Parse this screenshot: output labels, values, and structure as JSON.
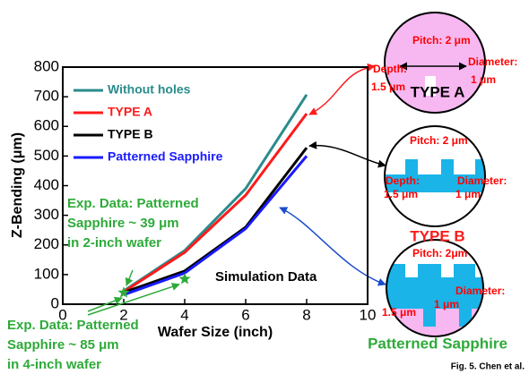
{
  "chart_data": {
    "type": "line",
    "y_label": "Z-Bending (μm)",
    "x_label": "Wafer Size (inch)",
    "x": [
      2,
      4,
      6,
      8
    ],
    "series": [
      {
        "name": "Without holes",
        "color": "#2a8c8c",
        "values": [
          45,
          181,
          390,
          707
        ]
      },
      {
        "name": "TYPE  A",
        "color": "#ff1a1a",
        "values": [
          42,
          175,
          368,
          643
        ]
      },
      {
        "name": "TYPE B",
        "color": "#000000",
        "values": [
          40,
          112,
          260,
          528
        ]
      },
      {
        "name": "Patterned Sapphire",
        "color": "#1a1aff",
        "values": [
          32,
          105,
          255,
          500
        ]
      }
    ],
    "experimental": {
      "color": "#2eaa3a",
      "x": [
        2,
        4
      ],
      "values": [
        39,
        85
      ]
    },
    "xlim": [
      0,
      10
    ],
    "xticks": [
      0,
      2,
      4,
      6,
      8,
      10
    ],
    "ylim": [
      0,
      800
    ],
    "yticks": [
      0,
      100,
      200,
      300,
      400,
      500,
      600,
      700,
      800
    ],
    "annotations": {
      "exp_2inch": [
        "Exp. Data: Patterned",
        "Sapphire ~ 39 μm",
        "in 2-inch wafer"
      ],
      "exp_4inch": [
        "Exp. Data: Patterned",
        "Sapphire ~ 85 μm",
        "in 4-inch wafer"
      ],
      "simulation": "Simulation Data"
    }
  },
  "diagrams": [
    {
      "title": "TYPE A",
      "labels": [
        "Pitch: 2 μm",
        "Depth:",
        "1.5 μm",
        "Diameter:",
        "1 μm"
      ]
    },
    {
      "title": "TYPE B",
      "labels": [
        "Pitch: 2 μm",
        "Depth:",
        "1.5 μm",
        "Diameter:",
        "1 μm"
      ]
    },
    {
      "title": "Patterned Sapphire",
      "labels": [
        "Pitch: 2μm",
        "Diameter:",
        "1 μm",
        "1.5 μm"
      ]
    }
  ],
  "caption": "Fig. 5. Chen et al."
}
